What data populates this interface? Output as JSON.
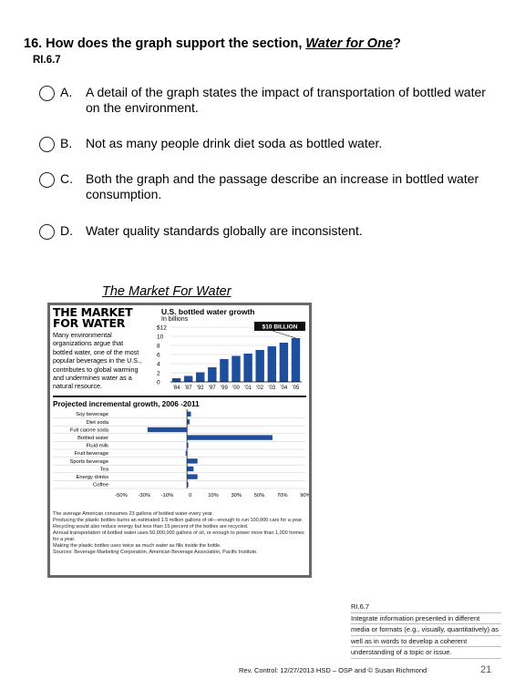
{
  "question": {
    "prefix": "16. How does the graph support the section, ",
    "section_name": "Water for One",
    "suffix": "?",
    "standard": "RI.6.7"
  },
  "options": [
    {
      "letter": "A.",
      "text": "A detail of the graph states the impact of transportation of bottled water on the environment."
    },
    {
      "letter": "B.",
      "text": "Not as many people drink diet soda as bottled water."
    },
    {
      "letter": "C.",
      "text": "Both the graph and the passage describe an increase in bottled water consumption."
    },
    {
      "letter": "D.",
      "text": "Water quality standards globally are inconsistent."
    }
  ],
  "figure": {
    "caption": "The Market  For Water",
    "heading_line1": "THE MARKET",
    "heading_line2": "FOR WATER",
    "blurb": "Many environmental organizations argue that bottled water, one of the most popular beverages in the U.S., contributes to global warming and undermines water as a natural resource.",
    "growth_title": "U.S. bottled water growth",
    "growth_units": "In billions",
    "callout": "$10 BILLION",
    "projection_title": "Projected incremental growth, 2006 -2011",
    "footnotes": [
      "The average American consumes 23 gallons of bottled water every year.",
      "Producing the plastic bottles burns an estimated 1.5 million gallons of oil—enough to run 100,000 cars for a year.",
      "Recycling would also reduce energy but less than 15 percent of the bottles are recycled.",
      "Annual transportation of bottled water uses 50,000,000 gallons of oil, or enough to power more than 1,000 homes for a year.",
      "Making the plastic bottles uses twice as much water as fills inside the bottle.",
      "Sources: Beverage Marketing Corporation, American Beverage Association, Pacific Institute."
    ]
  },
  "chart_data": [
    {
      "type": "bar",
      "title": "U.S. bottled water growth",
      "ylabel": "In billions",
      "categories": [
        "'84",
        "'87",
        "'92",
        "'97",
        "'99",
        "'00",
        "'01",
        "'02",
        "'03",
        "'04",
        "'05"
      ],
      "values": [
        0.8,
        1.3,
        2.1,
        3.2,
        5.0,
        5.7,
        6.2,
        7.0,
        7.8,
        8.6,
        9.6
      ],
      "ylim": [
        0,
        12
      ],
      "yticks": [
        "$12",
        "10",
        "8",
        "6",
        "4",
        "2",
        "0"
      ],
      "annotation": "$10 BILLION",
      "colors": {
        "bar": "#1f4e9c",
        "highlight": "#1f4e9c"
      }
    },
    {
      "type": "bar",
      "orientation": "horizontal",
      "title": "Projected incremental growth, 2006 -2011",
      "categories": [
        "Soy beverage",
        "Diet soda",
        "Full calorie soda",
        "Bottled water",
        "Fluid milk",
        "Fruit beverage",
        "Sports beverage",
        "Tea",
        "Energy drinks",
        "Coffee"
      ],
      "values": [
        3,
        2,
        -30,
        65,
        1,
        -1,
        8,
        5,
        8,
        1
      ],
      "xlim": [
        -50,
        90
      ],
      "xticks": [
        "-50%",
        "-30%",
        "-10%",
        "0",
        "10%",
        "30%",
        "50%",
        "70%",
        "90%"
      ],
      "colors": {
        "bar": "#1f4e9c"
      }
    }
  ],
  "standard_box": {
    "lines": [
      "RI.6.7",
      "Integrate information presented in different",
      "media or formats (e.g., visually, quantitatively) as",
      "well as in words to develop a coherent",
      "understanding of a topic or issue."
    ]
  },
  "footer": {
    "text": "Rev. Control:  12/27/2013 HSD – OSP and © Susan Richmond",
    "page": "21"
  }
}
